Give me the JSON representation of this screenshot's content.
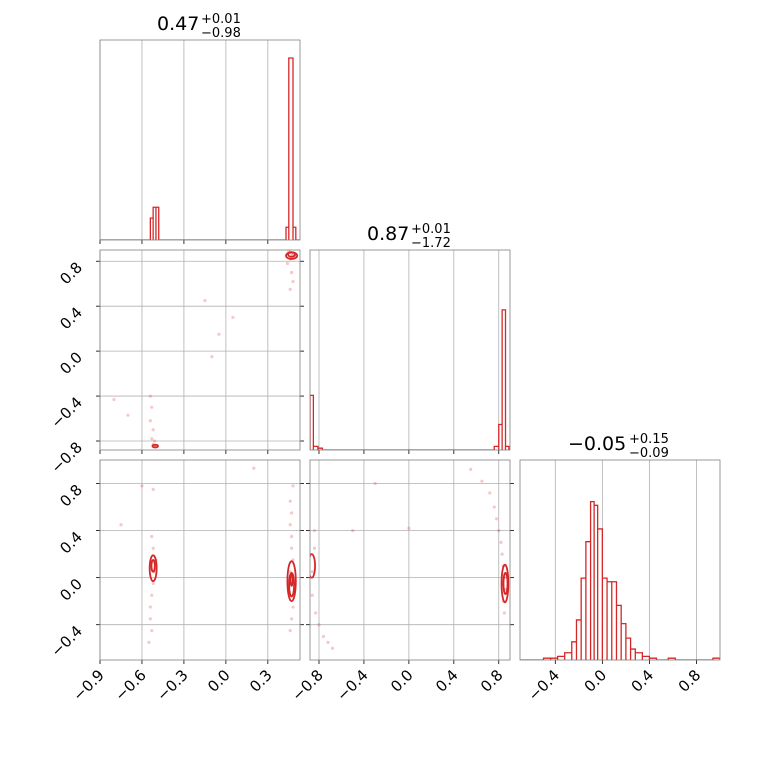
{
  "chart_data": {
    "type": "corner",
    "color": "#d62728",
    "parameters": [
      {
        "title_value": "0.47",
        "title_plus": "+0.01",
        "title_minus": "−0.98"
      },
      {
        "title_value": "0.87",
        "title_plus": "+0.01",
        "title_minus": "−1.72"
      },
      {
        "title_value": "−0.05",
        "title_plus": "+0.15",
        "title_minus": "−0.09"
      }
    ],
    "axes": {
      "p0": {
        "range": [
          -0.9,
          0.53
        ],
        "tick_values": [
          -0.9,
          -0.6,
          -0.3,
          0.0,
          0.3
        ],
        "tick_labels": [
          "−0.9",
          "−0.6",
          "−0.3",
          "0.0",
          "0.3"
        ]
      },
      "p1": {
        "range": [
          -0.88,
          0.9
        ],
        "tick_values": [
          -0.8,
          -0.4,
          0.0,
          0.4,
          0.8
        ],
        "tick_labels": [
          "−0.8",
          "−0.4",
          "0.0",
          "0.4",
          "0.8"
        ]
      },
      "p2": {
        "range": [
          -0.7,
          1.0
        ],
        "tick_values": [
          -0.4,
          0.0,
          0.4,
          0.8
        ],
        "tick_labels": [
          "−0.4",
          "0.0",
          "0.4",
          "0.8"
        ]
      }
    },
    "histograms": [
      {
        "param": 0,
        "bins": [
          [
            -0.54,
            -0.52,
            0.12
          ],
          [
            -0.52,
            -0.5,
            0.18
          ],
          [
            -0.5,
            -0.48,
            0.18
          ],
          [
            0.43,
            0.45,
            0.07
          ],
          [
            0.45,
            0.48,
            1.0
          ],
          [
            0.48,
            0.5,
            0.07
          ]
        ]
      },
      {
        "param": 1,
        "bins": [
          [
            -0.88,
            -0.85,
            0.3
          ],
          [
            -0.85,
            -0.81,
            0.02
          ],
          [
            -0.81,
            -0.77,
            0.01
          ],
          [
            0.76,
            0.8,
            0.02
          ],
          [
            0.8,
            0.83,
            0.14
          ],
          [
            0.83,
            0.86,
            0.77
          ],
          [
            0.86,
            0.89,
            0.02
          ]
        ]
      },
      {
        "param": 2,
        "bins": [
          [
            -0.5,
            -0.44,
            0.01
          ],
          [
            -0.44,
            -0.38,
            0.01
          ],
          [
            -0.38,
            -0.32,
            0.02
          ],
          [
            -0.32,
            -0.26,
            0.04
          ],
          [
            -0.26,
            -0.22,
            0.1
          ],
          [
            -0.22,
            -0.18,
            0.22
          ],
          [
            -0.18,
            -0.14,
            0.45
          ],
          [
            -0.14,
            -0.1,
            0.65
          ],
          [
            -0.1,
            -0.07,
            0.87
          ],
          [
            -0.07,
            -0.04,
            0.85
          ],
          [
            -0.04,
            0.0,
            0.72
          ],
          [
            0.0,
            0.04,
            0.45
          ],
          [
            0.04,
            0.08,
            0.43
          ],
          [
            0.08,
            0.12,
            0.43
          ],
          [
            0.12,
            0.16,
            0.3
          ],
          [
            0.16,
            0.2,
            0.2
          ],
          [
            0.2,
            0.24,
            0.12
          ],
          [
            0.24,
            0.28,
            0.06
          ],
          [
            0.28,
            0.34,
            0.04
          ],
          [
            0.34,
            0.4,
            0.02
          ],
          [
            0.4,
            0.46,
            0.01
          ],
          [
            0.56,
            0.62,
            0.01
          ],
          [
            0.94,
            1.0,
            0.01
          ]
        ]
      }
    ],
    "scatter_panels": [
      {
        "x_param": 0,
        "y_param": 1,
        "points": [
          [
            0.47,
            0.87
          ],
          [
            0.48,
            0.86
          ],
          [
            0.46,
            0.88
          ],
          [
            0.49,
            0.85
          ],
          [
            0.47,
            0.84
          ],
          [
            0.45,
            0.89
          ],
          [
            0.48,
            0.83
          ],
          [
            0.46,
            0.82
          ],
          [
            0.44,
            0.78
          ],
          [
            0.47,
            0.7
          ],
          [
            0.48,
            0.62
          ],
          [
            0.46,
            0.55
          ],
          [
            -0.51,
            -0.84
          ],
          [
            -0.5,
            -0.85
          ],
          [
            -0.52,
            -0.83
          ],
          [
            -0.51,
            -0.8
          ],
          [
            -0.53,
            -0.78
          ],
          [
            -0.52,
            -0.7
          ],
          [
            -0.54,
            -0.62
          ],
          [
            -0.53,
            -0.5
          ],
          [
            -0.54,
            -0.4
          ],
          [
            -0.8,
            -0.43
          ],
          [
            -0.7,
            -0.57
          ],
          [
            -0.05,
            0.15
          ],
          [
            0.05,
            0.3
          ],
          [
            -0.15,
            0.45
          ],
          [
            -0.1,
            -0.05
          ]
        ],
        "contours": [
          {
            "x": 0.47,
            "y": 0.85,
            "rx": 0.04,
            "ry": 0.03
          },
          {
            "x": 0.47,
            "y": 0.86,
            "rx": 0.025,
            "ry": 0.02
          },
          {
            "x": -0.505,
            "y": -0.845,
            "rx": 0.02,
            "ry": 0.012
          }
        ]
      },
      {
        "x_param": 0,
        "y_param": 2,
        "points": [
          [
            0.46,
            0.05
          ],
          [
            0.47,
            -0.05
          ],
          [
            0.48,
            0.15
          ],
          [
            0.46,
            -0.15
          ],
          [
            0.47,
            0.25
          ],
          [
            0.48,
            -0.25
          ],
          [
            0.47,
            0.35
          ],
          [
            0.46,
            0.45
          ],
          [
            0.47,
            0.55
          ],
          [
            0.46,
            0.65
          ],
          [
            0.48,
            0.78
          ],
          [
            0.47,
            -0.35
          ],
          [
            0.46,
            -0.45
          ],
          [
            -0.51,
            0.05
          ],
          [
            -0.52,
            -0.05
          ],
          [
            -0.5,
            0.15
          ],
          [
            -0.53,
            -0.15
          ],
          [
            -0.52,
            0.25
          ],
          [
            -0.54,
            -0.25
          ],
          [
            -0.53,
            0.35
          ],
          [
            -0.54,
            -0.35
          ],
          [
            -0.53,
            -0.45
          ],
          [
            -0.55,
            -0.55
          ],
          [
            -0.75,
            0.45
          ],
          [
            -0.6,
            0.78
          ],
          [
            0.2,
            0.93
          ],
          [
            -0.52,
            0.75
          ]
        ],
        "contours": [
          {
            "x": -0.52,
            "y": 0.08,
            "rx": 0.025,
            "ry": 0.11
          },
          {
            "x": -0.52,
            "y": 0.1,
            "rx": 0.012,
            "ry": 0.05
          },
          {
            "x": 0.47,
            "y": -0.03,
            "rx": 0.03,
            "ry": 0.17
          },
          {
            "x": 0.47,
            "y": -0.06,
            "rx": 0.018,
            "ry": 0.1
          },
          {
            "x": 0.47,
            "y": -0.02,
            "rx": 0.008,
            "ry": 0.05
          }
        ]
      },
      {
        "x_param": 1,
        "y_param": 2,
        "points": [
          [
            -0.86,
            0.05
          ],
          [
            -0.86,
            -0.15
          ],
          [
            -0.84,
            0.25
          ],
          [
            -0.83,
            -0.3
          ],
          [
            -0.8,
            -0.4
          ],
          [
            -0.76,
            -0.5
          ],
          [
            -0.72,
            -0.55
          ],
          [
            -0.68,
            -0.6
          ],
          [
            -0.84,
            0.4
          ],
          [
            -0.3,
            0.8
          ],
          [
            0.85,
            0.0
          ],
          [
            0.86,
            -0.1
          ],
          [
            0.84,
            0.1
          ],
          [
            0.83,
            0.2
          ],
          [
            0.82,
            0.3
          ],
          [
            0.8,
            0.4
          ],
          [
            0.78,
            0.5
          ],
          [
            0.76,
            0.6
          ],
          [
            0.72,
            0.72
          ],
          [
            0.65,
            0.82
          ],
          [
            0.55,
            0.92
          ],
          [
            0.84,
            -0.2
          ],
          [
            0.85,
            -0.3
          ],
          [
            -0.5,
            0.4
          ],
          [
            0.0,
            0.42
          ]
        ],
        "contours": [
          {
            "x": -0.865,
            "y": 0.1,
            "rx": 0.03,
            "ry": 0.1
          },
          {
            "x": 0.855,
            "y": -0.05,
            "rx": 0.03,
            "ry": 0.16
          },
          {
            "x": 0.86,
            "y": -0.05,
            "rx": 0.018,
            "ry": 0.09
          }
        ]
      }
    ],
    "grid": true,
    "legend": "none"
  }
}
